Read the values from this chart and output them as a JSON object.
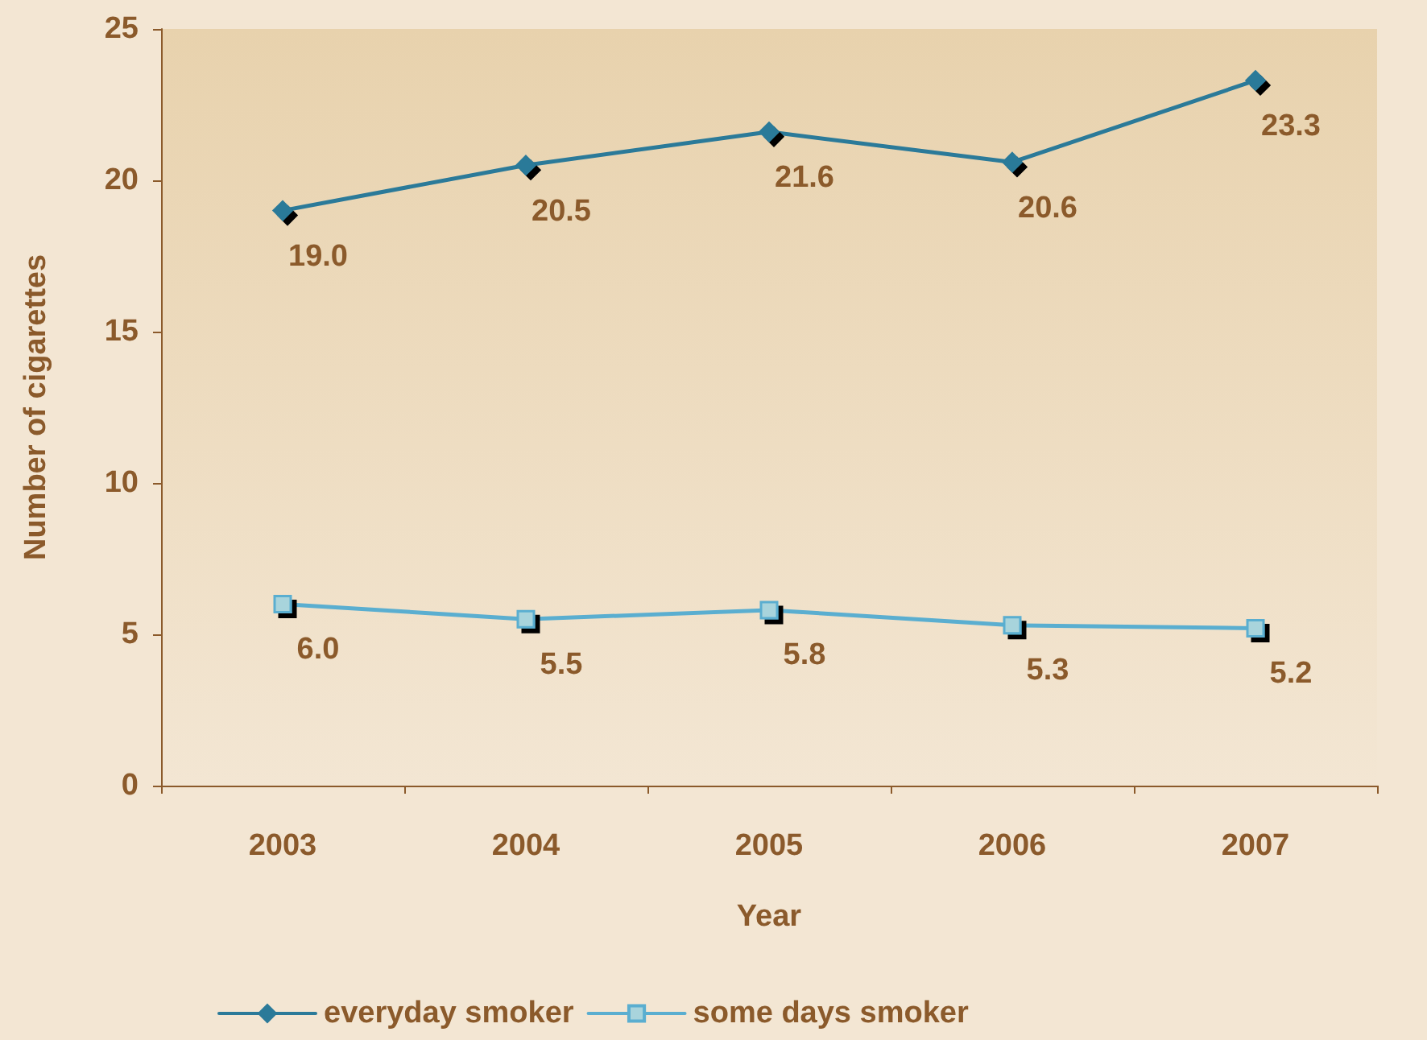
{
  "chart_data": {
    "type": "line",
    "xlabel": "Year",
    "ylabel": "Number of cigarettes",
    "categories": [
      "2003",
      "2004",
      "2005",
      "2006",
      "2007"
    ],
    "series": [
      {
        "name": "everyday smoker",
        "color": "#2b7a99",
        "marker": "diamond",
        "values": [
          19.0,
          20.5,
          21.6,
          20.6,
          23.3
        ],
        "value_labels": [
          "19.0",
          "20.5",
          "21.6",
          "20.6",
          "23.3"
        ]
      },
      {
        "name": "some days smoker",
        "color": "#5aaed0",
        "marker": "square",
        "values": [
          6.0,
          5.5,
          5.8,
          5.3,
          5.2
        ],
        "value_labels": [
          "6.0",
          "5.5",
          "5.8",
          "5.3",
          "5.2"
        ]
      }
    ],
    "ylim": [
      0,
      25
    ],
    "yticks": [
      0,
      5,
      10,
      15,
      20,
      25
    ],
    "grid": false,
    "legend": "bottom",
    "line_style": "solid"
  }
}
